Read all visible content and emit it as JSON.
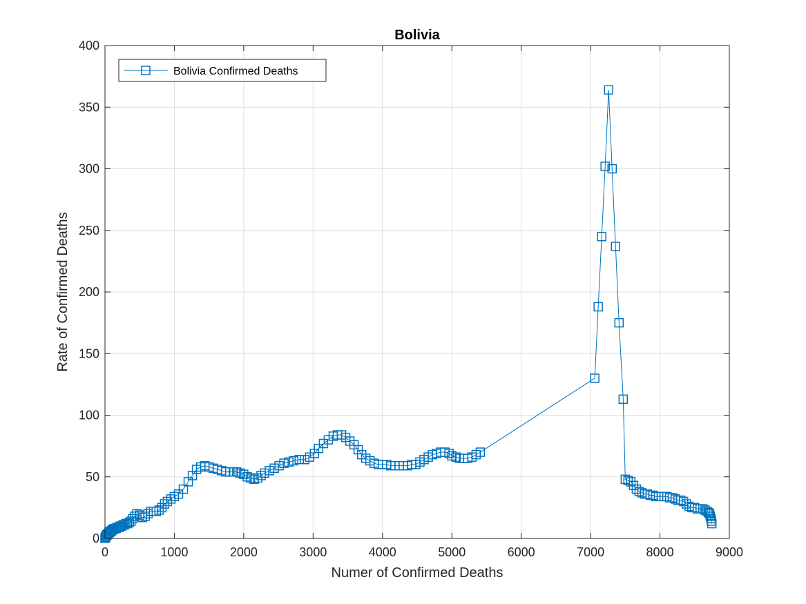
{
  "chart_data": {
    "type": "line",
    "title": "Bolivia",
    "xlabel": "Numer of Confirmed Deaths",
    "ylabel": "Rate of Confirmed Deaths",
    "xlim": [
      0,
      9000
    ],
    "ylim": [
      0,
      400
    ],
    "x_ticks": [
      0,
      1000,
      2000,
      3000,
      4000,
      5000,
      6000,
      7000,
      8000,
      9000
    ],
    "y_ticks": [
      0,
      50,
      100,
      150,
      200,
      250,
      300,
      350,
      400
    ],
    "x_tick_labels": [
      "0",
      "1000",
      "2000",
      "3000",
      "4000",
      "5000",
      "6000",
      "7000",
      "8000",
      "9000"
    ],
    "y_tick_labels": [
      "0",
      "50",
      "100",
      "150",
      "200",
      "250",
      "300",
      "350",
      "400"
    ],
    "grid": true,
    "legend_position": "top-left",
    "marker": "square",
    "colors": {
      "series": "#0072BD"
    },
    "series": [
      {
        "name": "Bolivia Confirmed Deaths",
        "points": [
          [
            0,
            0
          ],
          [
            5,
            1
          ],
          [
            10,
            1
          ],
          [
            15,
            2
          ],
          [
            20,
            2
          ],
          [
            28,
            3
          ],
          [
            35,
            3
          ],
          [
            42,
            4
          ],
          [
            50,
            4
          ],
          [
            60,
            5
          ],
          [
            70,
            5
          ],
          [
            80,
            6
          ],
          [
            92,
            6
          ],
          [
            105,
            7
          ],
          [
            118,
            7
          ],
          [
            130,
            8
          ],
          [
            145,
            8
          ],
          [
            160,
            8
          ],
          [
            175,
            9
          ],
          [
            190,
            9
          ],
          [
            205,
            9
          ],
          [
            220,
            10
          ],
          [
            240,
            10
          ],
          [
            260,
            11
          ],
          [
            280,
            11
          ],
          [
            300,
            12
          ],
          [
            325,
            12
          ],
          [
            350,
            13
          ],
          [
            375,
            14
          ],
          [
            400,
            16
          ],
          [
            430,
            18
          ],
          [
            460,
            20
          ],
          [
            500,
            19
          ],
          [
            540,
            17
          ],
          [
            580,
            18
          ],
          [
            620,
            20
          ],
          [
            660,
            22
          ],
          [
            700,
            22
          ],
          [
            740,
            22
          ],
          [
            780,
            23
          ],
          [
            820,
            25
          ],
          [
            860,
            28
          ],
          [
            900,
            30
          ],
          [
            950,
            32
          ],
          [
            1000,
            34
          ],
          [
            1060,
            36
          ],
          [
            1130,
            40
          ],
          [
            1200,
            46
          ],
          [
            1260,
            51
          ],
          [
            1320,
            56
          ],
          [
            1380,
            58
          ],
          [
            1440,
            59
          ],
          [
            1500,
            58
          ],
          [
            1560,
            57
          ],
          [
            1620,
            56
          ],
          [
            1680,
            55
          ],
          [
            1740,
            54
          ],
          [
            1800,
            54
          ],
          [
            1850,
            54
          ],
          [
            1900,
            54
          ],
          [
            1950,
            53
          ],
          [
            2000,
            52
          ],
          [
            2050,
            50
          ],
          [
            2100,
            49
          ],
          [
            2150,
            48
          ],
          [
            2200,
            49
          ],
          [
            2250,
            51
          ],
          [
            2300,
            53
          ],
          [
            2370,
            55
          ],
          [
            2440,
            57
          ],
          [
            2510,
            59
          ],
          [
            2580,
            61
          ],
          [
            2650,
            62
          ],
          [
            2720,
            63
          ],
          [
            2800,
            64
          ],
          [
            2880,
            64
          ],
          [
            2950,
            66
          ],
          [
            3020,
            69
          ],
          [
            3080,
            73
          ],
          [
            3150,
            77
          ],
          [
            3220,
            80
          ],
          [
            3290,
            83
          ],
          [
            3350,
            84
          ],
          [
            3410,
            84
          ],
          [
            3470,
            82
          ],
          [
            3530,
            79
          ],
          [
            3590,
            76
          ],
          [
            3650,
            72
          ],
          [
            3700,
            68
          ],
          [
            3760,
            65
          ],
          [
            3820,
            63
          ],
          [
            3880,
            61
          ],
          [
            3940,
            60
          ],
          [
            4000,
            60
          ],
          [
            4060,
            60
          ],
          [
            4120,
            59
          ],
          [
            4180,
            59
          ],
          [
            4240,
            59
          ],
          [
            4300,
            59
          ],
          [
            4360,
            59
          ],
          [
            4420,
            60
          ],
          [
            4480,
            60
          ],
          [
            4540,
            62
          ],
          [
            4600,
            64
          ],
          [
            4660,
            66
          ],
          [
            4720,
            68
          ],
          [
            4780,
            69
          ],
          [
            4840,
            70
          ],
          [
            4900,
            70
          ],
          [
            4960,
            69
          ],
          [
            5000,
            67
          ],
          [
            5060,
            66
          ],
          [
            5110,
            65
          ],
          [
            5170,
            65
          ],
          [
            5230,
            65
          ],
          [
            5290,
            66
          ],
          [
            5350,
            68
          ],
          [
            5410,
            70
          ],
          [
            7060,
            130
          ],
          [
            7110,
            188
          ],
          [
            7160,
            245
          ],
          [
            7210,
            302
          ],
          [
            7260,
            364
          ],
          [
            7310,
            300
          ],
          [
            7360,
            237
          ],
          [
            7410,
            175
          ],
          [
            7470,
            113
          ],
          [
            7500,
            48
          ],
          [
            7540,
            47
          ],
          [
            7580,
            46
          ],
          [
            7620,
            43
          ],
          [
            7660,
            40
          ],
          [
            7700,
            38
          ],
          [
            7740,
            37
          ],
          [
            7780,
            36
          ],
          [
            7820,
            36
          ],
          [
            7860,
            35
          ],
          [
            7900,
            35
          ],
          [
            7940,
            34
          ],
          [
            7980,
            34
          ],
          [
            8020,
            34
          ],
          [
            8060,
            34
          ],
          [
            8100,
            34
          ],
          [
            8140,
            33
          ],
          [
            8180,
            33
          ],
          [
            8220,
            32
          ],
          [
            8260,
            31
          ],
          [
            8300,
            31
          ],
          [
            8340,
            30
          ],
          [
            8380,
            28
          ],
          [
            8420,
            26
          ],
          [
            8460,
            25
          ],
          [
            8500,
            25
          ],
          [
            8540,
            24
          ],
          [
            8580,
            24
          ],
          [
            8620,
            24
          ],
          [
            8650,
            23
          ],
          [
            8680,
            22
          ],
          [
            8700,
            21
          ],
          [
            8715,
            20
          ],
          [
            8725,
            18
          ],
          [
            8735,
            16
          ],
          [
            8742,
            14
          ],
          [
            8748,
            12
          ]
        ]
      }
    ]
  }
}
